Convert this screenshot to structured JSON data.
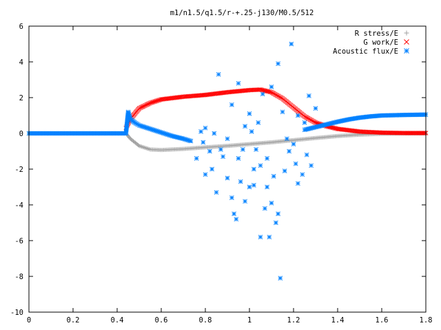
{
  "chart_data": {
    "type": "scatter",
    "title": "m1/n1.5/q1.5/r-+.25-j130/M0.5/512",
    "xlabel": "",
    "ylabel": "",
    "xlim": [
      0,
      1.8
    ],
    "ylim": [
      -10,
      6
    ],
    "x_ticks": [
      "0",
      "0.2",
      "0.4",
      "0.6",
      "0.8",
      "1",
      "1.2",
      "1.4",
      "1.6",
      "1.8"
    ],
    "y_ticks": [
      "6",
      "4",
      "2",
      "0",
      "-2",
      "-4",
      "-6",
      "-8",
      "-10"
    ],
    "grid": false,
    "legend_position": "top-right",
    "series": [
      {
        "name": "R stress/E",
        "marker": "plus",
        "color": "#a0a0a0",
        "curve": [
          [
            0,
            0
          ],
          [
            0.44,
            0
          ],
          [
            0.46,
            -0.3
          ],
          [
            0.5,
            -0.7
          ],
          [
            0.55,
            -0.9
          ],
          [
            0.6,
            -0.93
          ],
          [
            0.7,
            -0.87
          ],
          [
            0.8,
            -0.78
          ],
          [
            0.9,
            -0.7
          ],
          [
            1.0,
            -0.6
          ],
          [
            1.1,
            -0.5
          ],
          [
            1.2,
            -0.38
          ],
          [
            1.3,
            -0.26
          ],
          [
            1.4,
            -0.15
          ],
          [
            1.5,
            -0.07
          ],
          [
            1.6,
            -0.02
          ],
          [
            1.7,
            0
          ],
          [
            1.8,
            0
          ]
        ]
      },
      {
        "name": "G work/E",
        "marker": "cross",
        "color": "#ff0000",
        "curve": [
          [
            0.44,
            0.3
          ],
          [
            0.46,
            0.8
          ],
          [
            0.5,
            1.4
          ],
          [
            0.55,
            1.7
          ],
          [
            0.6,
            1.9
          ],
          [
            0.7,
            2.05
          ],
          [
            0.8,
            2.15
          ],
          [
            0.9,
            2.3
          ],
          [
            1.0,
            2.42
          ],
          [
            1.05,
            2.45
          ],
          [
            1.1,
            2.3
          ],
          [
            1.15,
            1.95
          ],
          [
            1.2,
            1.45
          ],
          [
            1.25,
            0.95
          ],
          [
            1.3,
            0.6
          ],
          [
            1.35,
            0.4
          ],
          [
            1.4,
            0.25
          ],
          [
            1.5,
            0.1
          ],
          [
            1.6,
            0.04
          ],
          [
            1.7,
            0.02
          ],
          [
            1.8,
            0.02
          ]
        ]
      },
      {
        "name": "Acoustic flux/E",
        "marker": "star",
        "color": "#0080ff",
        "curve": [
          [
            0,
            0
          ],
          [
            0.44,
            0
          ],
          [
            0.45,
            1.2
          ],
          [
            0.46,
            0.8
          ],
          [
            0.48,
            0.6
          ],
          [
            0.5,
            0.45
          ],
          [
            0.55,
            0.25
          ],
          [
            0.6,
            0.05
          ],
          [
            0.65,
            -0.15
          ],
          [
            0.7,
            -0.3
          ],
          [
            0.74,
            -0.45
          ],
          [
            1.25,
            0.2
          ],
          [
            1.3,
            0.35
          ],
          [
            1.35,
            0.5
          ],
          [
            1.4,
            0.65
          ],
          [
            1.45,
            0.78
          ],
          [
            1.5,
            0.88
          ],
          [
            1.55,
            0.95
          ],
          [
            1.6,
            1.0
          ],
          [
            1.7,
            1.03
          ],
          [
            1.8,
            1.05
          ]
        ],
        "scatter": [
          [
            0.78,
            0.1
          ],
          [
            0.8,
            0.3
          ],
          [
            0.79,
            -0.5
          ],
          [
            0.82,
            -1.0
          ],
          [
            0.76,
            -1.4
          ],
          [
            0.8,
            -2.3
          ],
          [
            0.83,
            -2.0
          ],
          [
            0.85,
            -3.3
          ],
          [
            0.86,
            3.3
          ],
          [
            0.88,
            -1.3
          ],
          [
            0.9,
            -2.5
          ],
          [
            0.9,
            -0.3
          ],
          [
            0.92,
            1.6
          ],
          [
            0.92,
            -3.6
          ],
          [
            0.93,
            -4.5
          ],
          [
            0.95,
            2.8
          ],
          [
            0.95,
            -1.4
          ],
          [
            0.96,
            -2.7
          ],
          [
            0.98,
            -3.8
          ],
          [
            0.98,
            0.4
          ],
          [
            1.0,
            -3.0
          ],
          [
            1.0,
            1.1
          ],
          [
            1.02,
            -2.9
          ],
          [
            1.02,
            -2.0
          ],
          [
            1.04,
            0.6
          ],
          [
            1.05,
            -1.8
          ],
          [
            1.05,
            -5.8
          ],
          [
            1.06,
            2.2
          ],
          [
            1.08,
            -1.4
          ],
          [
            1.08,
            -3.0
          ],
          [
            1.1,
            2.6
          ],
          [
            1.1,
            -3.9
          ],
          [
            1.12,
            -5.0
          ],
          [
            1.13,
            3.9
          ],
          [
            1.13,
            -4.5
          ],
          [
            1.14,
            -8.1
          ],
          [
            1.15,
            1.2
          ],
          [
            1.16,
            -2.1
          ],
          [
            1.18,
            -1.0
          ],
          [
            1.19,
            5.0
          ],
          [
            1.2,
            -0.6
          ],
          [
            1.21,
            -1.7
          ],
          [
            1.22,
            1.0
          ],
          [
            1.22,
            -2.8
          ],
          [
            1.24,
            -2.3
          ],
          [
            1.25,
            0.6
          ],
          [
            1.26,
            -1.2
          ],
          [
            1.27,
            2.1
          ],
          [
            1.28,
            -1.8
          ],
          [
            1.3,
            1.4
          ],
          [
            0.97,
            -0.9
          ],
          [
            1.07,
            -4.2
          ],
          [
            1.11,
            -2.4
          ],
          [
            1.03,
            -0.9
          ],
          [
            0.87,
            -0.9
          ],
          [
            0.84,
            0.0
          ],
          [
            1.09,
            -5.8
          ],
          [
            1.01,
            0.1
          ],
          [
            0.94,
            -4.8
          ],
          [
            1.17,
            -0.3
          ]
        ]
      }
    ]
  }
}
